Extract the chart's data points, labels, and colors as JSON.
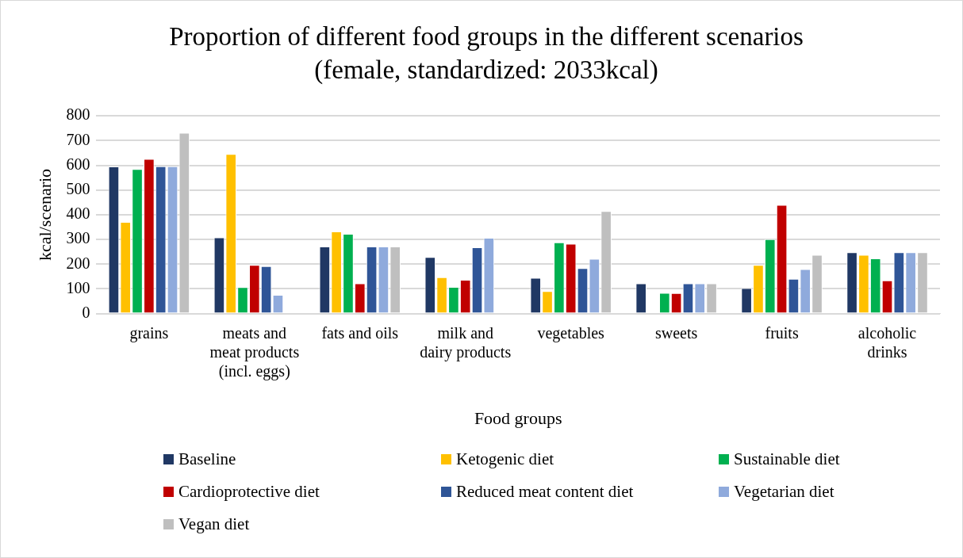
{
  "chart_data": {
    "type": "bar",
    "title": "Proportion of different food groups in the different scenarios",
    "subtitle": "(female, standardized: 2033kcal)",
    "xlabel": "Food groups",
    "ylabel": "kcal/scenario",
    "categories": [
      "grains",
      "meats and meat products (incl. eggs)",
      "fats and oils",
      "milk and dairy products",
      "vegetables",
      "sweets",
      "fruits",
      "alcoholic drinks"
    ],
    "series": [
      {
        "name": "Baseline",
        "color": "#203864",
        "values": [
          595,
          308,
          271,
          229,
          145,
          122,
          103,
          248
        ]
      },
      {
        "name": "Ketogenic diet",
        "color": "#ffc000",
        "values": [
          371,
          646,
          332,
          147,
          91,
          0,
          197,
          238
        ]
      },
      {
        "name": "Sustainable diet",
        "color": "#00b050",
        "values": [
          585,
          107,
          323,
          108,
          288,
          84,
          301,
          223
        ]
      },
      {
        "name": "Cardioprotective diet",
        "color": "#c00000",
        "values": [
          626,
          197,
          122,
          137,
          283,
          83,
          440,
          134
        ]
      },
      {
        "name": "Reduced meat content diet",
        "color": "#2f5597",
        "values": [
          596,
          192,
          271,
          268,
          184,
          122,
          141,
          248
        ]
      },
      {
        "name": "Vegetarian diet",
        "color": "#8faadc",
        "values": [
          596,
          76,
          271,
          307,
          222,
          122,
          180,
          248
        ]
      },
      {
        "name": "Vegan diet",
        "color": "#bfbfbf",
        "values": [
          732,
          0,
          271,
          0,
          415,
          122,
          238,
          248
        ]
      }
    ],
    "ylim": [
      0,
      800
    ],
    "yticks": [
      0,
      100,
      200,
      300,
      400,
      500,
      600,
      700,
      800
    ],
    "grid": "y",
    "legend": "bottom"
  }
}
